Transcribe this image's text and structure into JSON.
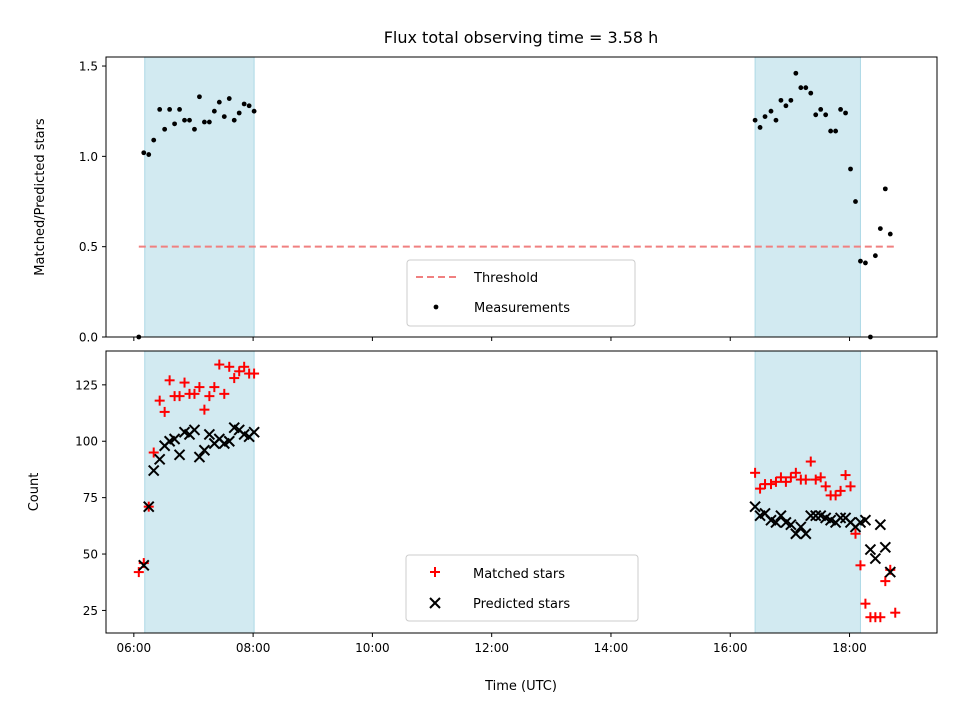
{
  "title": "Flux total observing time = 3.58 h",
  "colors": {
    "shade": "#add8e6",
    "threshold": "#f08080",
    "matched": "#ff0000",
    "predicted": "#000000",
    "measurement": "#000000"
  },
  "chart_data": [
    {
      "type": "scatter",
      "panel": "top",
      "ylabel": "Matched/Predicted stars",
      "xlabel": "",
      "xlim": [
        "05:32",
        "19:28"
      ],
      "ylim": [
        0,
        1.55
      ],
      "yticks": [
        0.0,
        0.5,
        1.0,
        1.5
      ],
      "ytick_labels": [
        "0.0",
        "0.5",
        "1.0",
        "1.5"
      ],
      "shaded_intervals": [
        [
          "06:11",
          "08:01"
        ],
        [
          "16:25",
          "18:11"
        ]
      ],
      "threshold": {
        "name": "Threshold",
        "y": 0.5,
        "x": [
          "06:05",
          "18:48"
        ]
      },
      "legend": [
        "Threshold",
        "Measurements"
      ],
      "legend_position": "lower center",
      "series": [
        {
          "name": "Measurements",
          "points": [
            [
              "06:05",
              0.0
            ],
            [
              "06:10",
              1.02
            ],
            [
              "06:15",
              1.01
            ],
            [
              "06:20",
              1.09
            ],
            [
              "06:26",
              1.26
            ],
            [
              "06:31",
              1.15
            ],
            [
              "06:36",
              1.26
            ],
            [
              "06:41",
              1.18
            ],
            [
              "06:46",
              1.26
            ],
            [
              "06:51",
              1.2
            ],
            [
              "06:56",
              1.2
            ],
            [
              "07:01",
              1.15
            ],
            [
              "07:06",
              1.33
            ],
            [
              "07:11",
              1.19
            ],
            [
              "07:16",
              1.19
            ],
            [
              "07:21",
              1.25
            ],
            [
              "07:26",
              1.3
            ],
            [
              "07:31",
              1.22
            ],
            [
              "07:36",
              1.32
            ],
            [
              "07:41",
              1.2
            ],
            [
              "07:46",
              1.24
            ],
            [
              "07:51",
              1.29
            ],
            [
              "07:56",
              1.28
            ],
            [
              "08:01",
              1.25
            ],
            [
              "16:25",
              1.2
            ],
            [
              "16:30",
              1.16
            ],
            [
              "16:35",
              1.22
            ],
            [
              "16:41",
              1.25
            ],
            [
              "16:46",
              1.2
            ],
            [
              "16:51",
              1.31
            ],
            [
              "16:56",
              1.28
            ],
            [
              "17:01",
              1.31
            ],
            [
              "17:06",
              1.46
            ],
            [
              "17:11",
              1.38
            ],
            [
              "17:16",
              1.38
            ],
            [
              "17:21",
              1.35
            ],
            [
              "17:26",
              1.23
            ],
            [
              "17:31",
              1.26
            ],
            [
              "17:36",
              1.23
            ],
            [
              "17:41",
              1.14
            ],
            [
              "17:46",
              1.14
            ],
            [
              "17:51",
              1.26
            ],
            [
              "17:56",
              1.24
            ],
            [
              "18:01",
              0.93
            ],
            [
              "18:06",
              0.75
            ],
            [
              "18:11",
              0.42
            ],
            [
              "18:16",
              0.41
            ],
            [
              "18:21",
              0.0
            ],
            [
              "18:26",
              0.45
            ],
            [
              "18:31",
              0.6
            ],
            [
              "18:36",
              0.82
            ],
            [
              "18:41",
              0.57
            ]
          ]
        }
      ]
    },
    {
      "type": "scatter",
      "panel": "bottom",
      "ylabel": "Count",
      "xlabel": "Time (UTC)",
      "xlim": [
        "05:32",
        "19:28"
      ],
      "ylim": [
        15,
        140
      ],
      "yticks": [
        25,
        50,
        75,
        100,
        125
      ],
      "ytick_labels": [
        "25",
        "50",
        "75",
        "100",
        "125"
      ],
      "xticks": [
        "06:00",
        "08:00",
        "10:00",
        "12:00",
        "14:00",
        "16:00",
        "18:00"
      ],
      "xtick_labels": [
        "06:00",
        "08:00",
        "10:00",
        "12:00",
        "14:00",
        "16:00",
        "18:00"
      ],
      "shaded_intervals": [
        [
          "06:11",
          "08:01"
        ],
        [
          "16:25",
          "18:11"
        ]
      ],
      "legend": [
        "Matched stars",
        "Predicted stars"
      ],
      "legend_position": "lower center",
      "series": [
        {
          "name": "Matched stars",
          "points": [
            [
              "06:05",
              42
            ],
            [
              "06:10",
              46
            ],
            [
              "06:15",
              71
            ],
            [
              "06:20",
              95
            ],
            [
              "06:26",
              118
            ],
            [
              "06:31",
              113
            ],
            [
              "06:36",
              127
            ],
            [
              "06:41",
              120
            ],
            [
              "06:46",
              120
            ],
            [
              "06:51",
              126
            ],
            [
              "06:56",
              121
            ],
            [
              "07:01",
              121
            ],
            [
              "07:06",
              124
            ],
            [
              "07:11",
              114
            ],
            [
              "07:16",
              120
            ],
            [
              "07:21",
              124
            ],
            [
              "07:26",
              134
            ],
            [
              "07:31",
              121
            ],
            [
              "07:36",
              133
            ],
            [
              "07:41",
              128
            ],
            [
              "07:46",
              131
            ],
            [
              "07:51",
              133
            ],
            [
              "07:56",
              130
            ],
            [
              "08:01",
              130
            ],
            [
              "16:25",
              86
            ],
            [
              "16:30",
              79
            ],
            [
              "16:35",
              81
            ],
            [
              "16:41",
              81
            ],
            [
              "16:46",
              82
            ],
            [
              "16:51",
              84
            ],
            [
              "16:56",
              82
            ],
            [
              "17:01",
              84
            ],
            [
              "17:06",
              86
            ],
            [
              "17:11",
              83
            ],
            [
              "17:16",
              83
            ],
            [
              "17:21",
              91
            ],
            [
              "17:26",
              83
            ],
            [
              "17:31",
              84
            ],
            [
              "17:36",
              80
            ],
            [
              "17:41",
              76
            ],
            [
              "17:46",
              76
            ],
            [
              "17:51",
              78
            ],
            [
              "17:56",
              85
            ],
            [
              "18:01",
              80
            ],
            [
              "18:06",
              59
            ],
            [
              "18:11",
              45
            ],
            [
              "18:16",
              28
            ],
            [
              "18:21",
              22
            ],
            [
              "18:26",
              22
            ],
            [
              "18:31",
              22
            ],
            [
              "18:36",
              38
            ],
            [
              "18:41",
              43
            ],
            [
              "18:46",
              24
            ]
          ]
        },
        {
          "name": "Predicted stars",
          "points": [
            [
              "06:10",
              45
            ],
            [
              "06:15",
              71
            ],
            [
              "06:20",
              87
            ],
            [
              "06:26",
              92
            ],
            [
              "06:31",
              98
            ],
            [
              "06:36",
              100
            ],
            [
              "06:41",
              101
            ],
            [
              "06:46",
              94
            ],
            [
              "06:51",
              104
            ],
            [
              "06:56",
              103
            ],
            [
              "07:01",
              105
            ],
            [
              "07:06",
              93
            ],
            [
              "07:11",
              96
            ],
            [
              "07:16",
              103
            ],
            [
              "07:21",
              99
            ],
            [
              "07:26",
              101
            ],
            [
              "07:31",
              99
            ],
            [
              "07:36",
              100
            ],
            [
              "07:41",
              106
            ],
            [
              "07:46",
              105
            ],
            [
              "07:51",
              103
            ],
            [
              "07:56",
              102
            ],
            [
              "08:01",
              104
            ],
            [
              "16:25",
              71
            ],
            [
              "16:30",
              67
            ],
            [
              "16:35",
              68
            ],
            [
              "16:41",
              65
            ],
            [
              "16:46",
              64
            ],
            [
              "16:51",
              67
            ],
            [
              "16:56",
              64
            ],
            [
              "17:01",
              63
            ],
            [
              "17:06",
              59
            ],
            [
              "17:11",
              62
            ],
            [
              "17:16",
              59
            ],
            [
              "17:21",
              67
            ],
            [
              "17:26",
              67
            ],
            [
              "17:31",
              67
            ],
            [
              "17:36",
              66
            ],
            [
              "17:41",
              65
            ],
            [
              "17:46",
              64
            ],
            [
              "17:51",
              66
            ],
            [
              "17:56",
              66
            ],
            [
              "18:01",
              64
            ],
            [
              "18:06",
              62
            ],
            [
              "18:11",
              64
            ],
            [
              "18:16",
              65
            ],
            [
              "18:21",
              52
            ],
            [
              "18:26",
              48
            ],
            [
              "18:31",
              63
            ],
            [
              "18:36",
              53
            ],
            [
              "18:41",
              42
            ]
          ]
        }
      ]
    }
  ]
}
